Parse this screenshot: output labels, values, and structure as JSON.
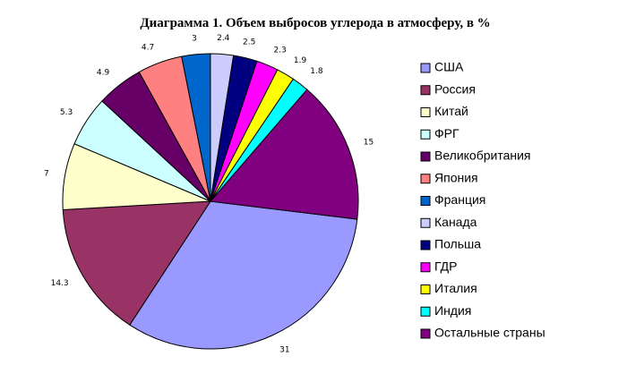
{
  "chart_data": {
    "type": "pie",
    "title": "Диаграмма 1. Объем выбросов углерода в атмосферу, в %",
    "categories": [
      "США",
      "Россия",
      "Китай",
      "ФРГ",
      "Великобритания",
      "Япония",
      "Франция",
      "Канада",
      "Польша",
      "ГДР",
      "Италия",
      "Индия",
      "Остальные страны"
    ],
    "values": [
      31,
      14.3,
      7,
      5.3,
      4.9,
      4.7,
      3,
      2.4,
      2.5,
      2.3,
      1.9,
      1.8,
      15
    ],
    "colors": [
      "#9999ff",
      "#993366",
      "#ffffcc",
      "#ccffff",
      "#660066",
      "#ff8080",
      "#0066cc",
      "#ccccff",
      "#000080",
      "#ff00ff",
      "#ffff00",
      "#00ffff",
      "#800080"
    ],
    "legend": "right"
  }
}
